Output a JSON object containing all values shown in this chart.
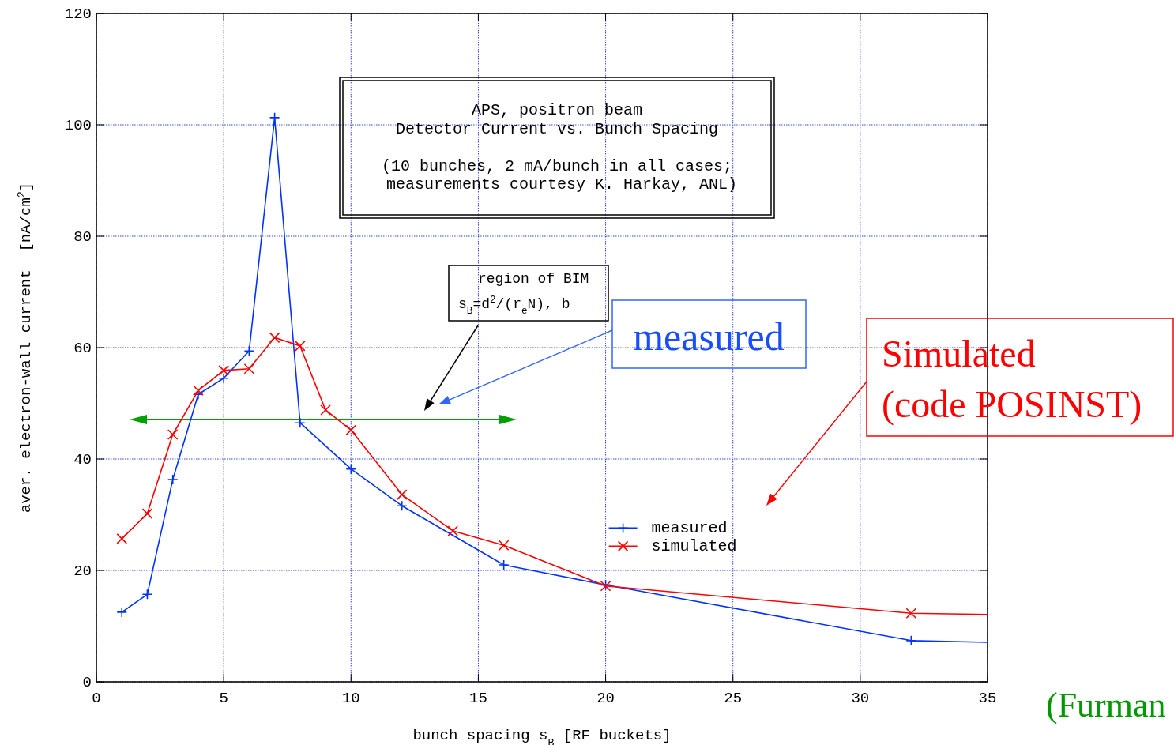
{
  "chart_data": {
    "type": "line",
    "xlabel": "bunch spacing s$_{B}$ [RF buckets]",
    "ylabel": "aver. electron-wall current  [nA/cm$^{2}$]",
    "xlim": [
      0,
      35
    ],
    "xticks": [
      0,
      5,
      10,
      15,
      20,
      25,
      30,
      35
    ],
    "ylim": [
      0,
      120
    ],
    "yticks": [
      0,
      20,
      40,
      60,
      80,
      100,
      120
    ],
    "grid": true,
    "legend": "bottom",
    "line_style": "solid",
    "series": [
      {
        "name": "measured",
        "color": "#0033ff",
        "marker": "plus",
        "x": [
          1,
          2,
          3,
          4,
          5,
          6,
          7,
          8,
          10,
          12,
          16,
          20,
          32,
          35
        ],
        "values": [
          12.5,
          15.7,
          36.3,
          51.6,
          54.5,
          59.4,
          101.3,
          46.5,
          38.2,
          31.6,
          21.0,
          17.4,
          7.4,
          7.1
        ]
      },
      {
        "name": "simulated",
        "color": "#ff0000",
        "marker": "cross",
        "x": [
          1,
          2,
          3,
          4,
          5,
          6,
          7,
          8,
          9,
          10,
          12,
          14,
          16,
          20,
          32,
          35
        ],
        "values": [
          25.7,
          30.2,
          44.4,
          52.3,
          55.9,
          56.2,
          61.8,
          60.3,
          48.8,
          45.2,
          33.6,
          27.1,
          24.5,
          17.2,
          12.3,
          12.1
        ]
      }
    ],
    "annotations": [
      "APS, positron beam\nDetector Current vs. Bunch Spacing\n\n(10 bunches, 2 mA/bunch in all cases;\n measurements courtesy K. Harkay, ANL)",
      "region of BIM\ns$_{B}$=d$^{2}$/(r$_{e}$N), b",
      "measured",
      "Simulated\n(code POSINST)",
      "(Furman"
    ]
  }
}
